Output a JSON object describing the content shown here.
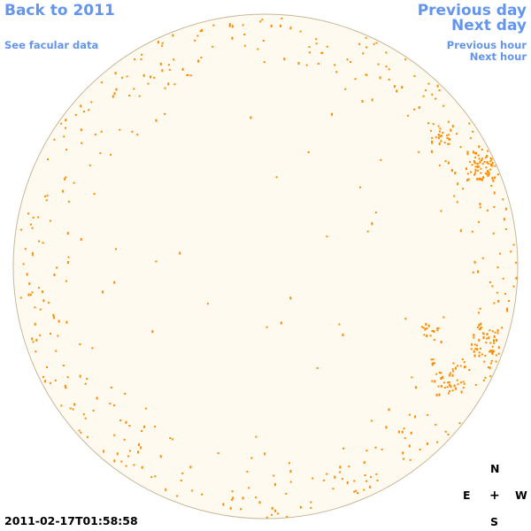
{
  "nav": {
    "back_label": "Back to 2011",
    "facular_label": "See facular data",
    "prev_day_label": "Previous day",
    "next_day_label": "Next day",
    "prev_hour_label": "Previous hour",
    "next_hour_label": "Next hour"
  },
  "timestamp": "2011-02-17T01:58:58",
  "compass": {
    "north": "N",
    "south": "S",
    "east": "E",
    "west": "W",
    "center": "+"
  },
  "colors": {
    "link": "#6495ed",
    "disk_fill": "#fffaf0",
    "disk_outline": "#c8b89a",
    "marker": "#ff8c00"
  }
}
